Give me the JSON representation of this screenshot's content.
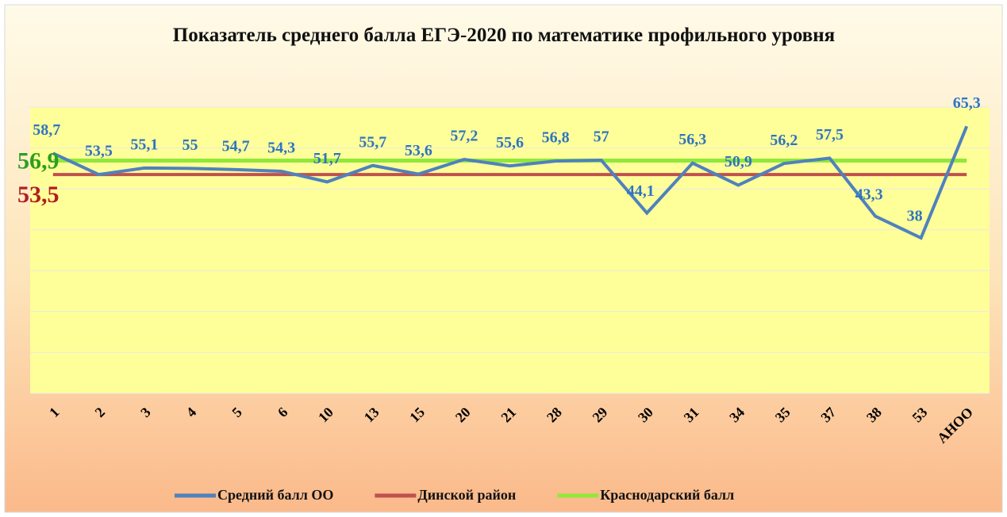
{
  "chart_data": {
    "type": "line",
    "title": "Показатель среднего балла ЕГЭ-2020  по математике  профильного уровня",
    "categories": [
      "1",
      "2",
      "3",
      "4",
      "5",
      "6",
      "10",
      "13",
      "15",
      "20",
      "21",
      "28",
      "29",
      "30",
      "31",
      "34",
      "35",
      "37",
      "38",
      "53",
      "АНОО"
    ],
    "series": [
      {
        "name": "Средний балл ОО",
        "color": "#4f81bd",
        "values": [
          58.7,
          53.5,
          55.1,
          55,
          54.7,
          54.3,
          51.7,
          55.7,
          53.6,
          57.2,
          55.6,
          56.8,
          57,
          44.1,
          56.3,
          50.9,
          56.2,
          57.5,
          43.3,
          38,
          65.3
        ],
        "value_labels": [
          "58,7",
          "53,5",
          "55,1",
          "55",
          "54,7",
          "54,3",
          "51,7",
          "55,7",
          "53,6",
          "57,2",
          "55,6",
          "56,8",
          "57",
          "44,1",
          "56,3",
          "50,9",
          "56,2",
          "57,5",
          "43,3",
          "38",
          "65,3"
        ]
      },
      {
        "name": "Динской район",
        "color": "#c0504d",
        "values": [
          53.5,
          53.5,
          53.5,
          53.5,
          53.5,
          53.5,
          53.5,
          53.5,
          53.5,
          53.5,
          53.5,
          53.5,
          53.5,
          53.5,
          53.5,
          53.5,
          53.5,
          53.5,
          53.5,
          53.5,
          53.5
        ]
      },
      {
        "name": "Краснодарский балл",
        "color": "#92e83a",
        "values": [
          56.9,
          56.9,
          56.9,
          56.9,
          56.9,
          56.9,
          56.9,
          56.9,
          56.9,
          56.9,
          56.9,
          56.9,
          56.9,
          56.9,
          56.9,
          56.9,
          56.9,
          56.9,
          56.9,
          56.9,
          56.9
        ]
      }
    ],
    "annotations": [
      {
        "text": "56,9",
        "value": 56.9,
        "color": "#2e9e1e"
      },
      {
        "text": "53,5",
        "value": 53.5,
        "color": "#b21e1e"
      }
    ],
    "ylim": [
      0,
      70
    ],
    "yticks": [
      0,
      10,
      20,
      30,
      40,
      50,
      60,
      70
    ],
    "grid": true
  }
}
